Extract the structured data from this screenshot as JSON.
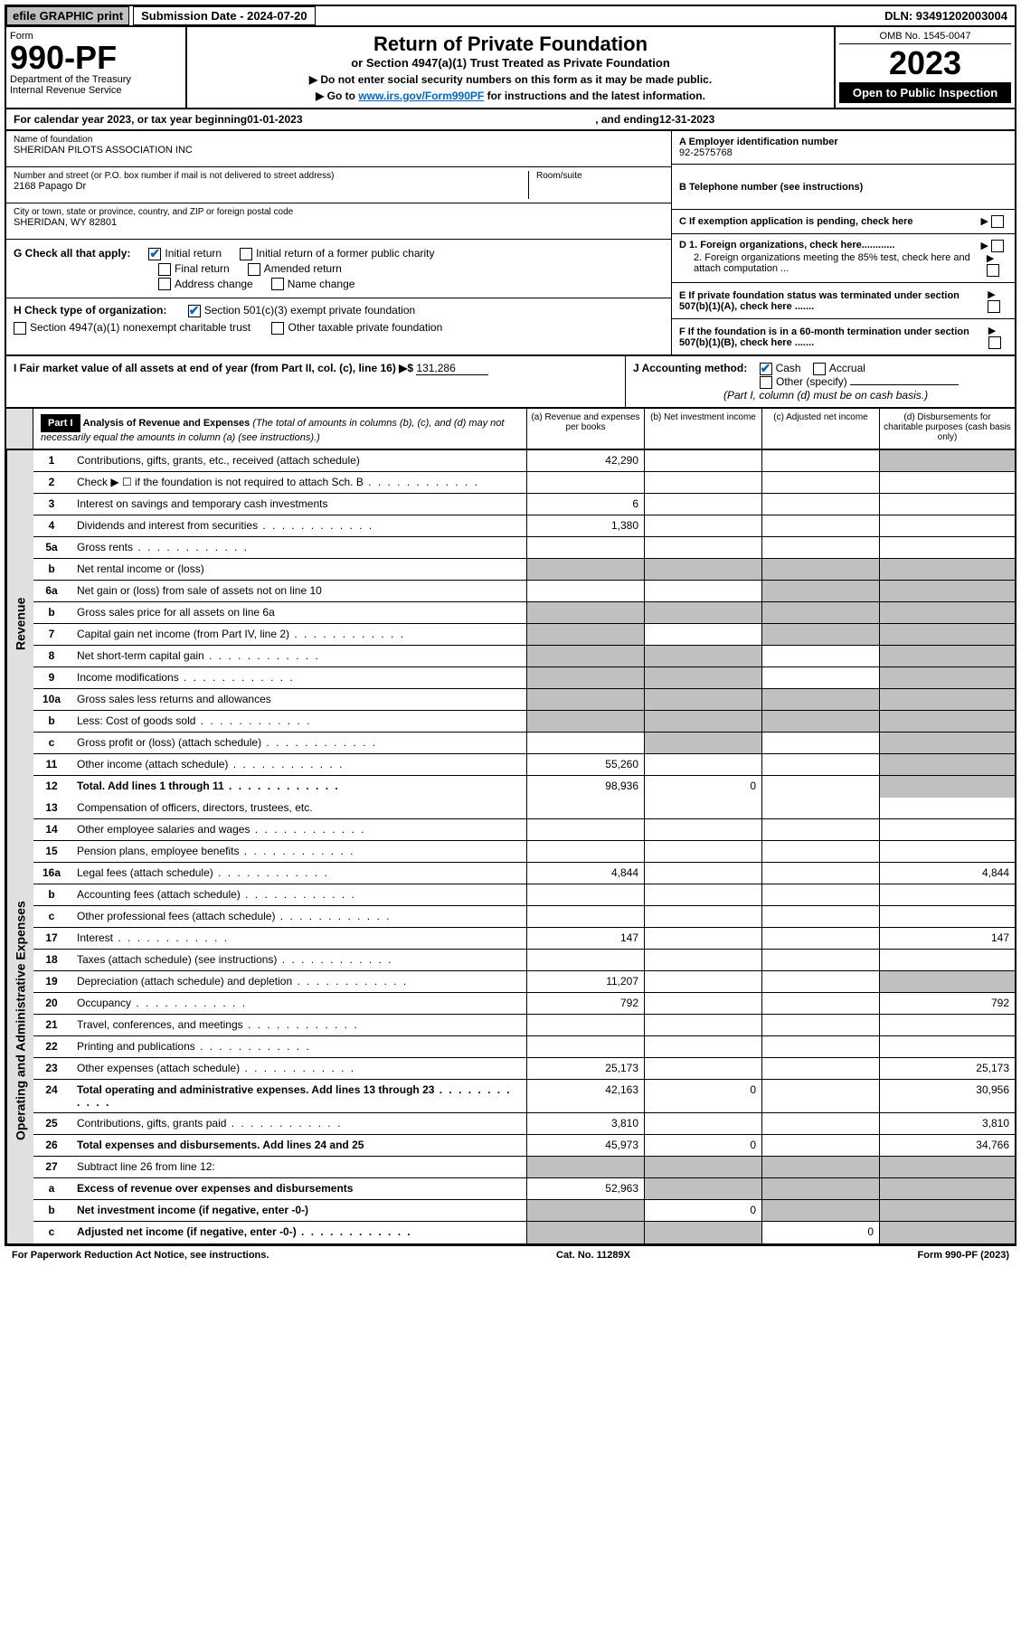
{
  "top": {
    "efile": "efile GRAPHIC print",
    "submission": "Submission Date - 2024-07-20",
    "dln": "DLN: 93491202003004"
  },
  "header": {
    "form": "Form",
    "number": "990-PF",
    "dept": "Department of the Treasury",
    "irs": "Internal Revenue Service",
    "title": "Return of Private Foundation",
    "subtitle": "or Section 4947(a)(1) Trust Treated as Private Foundation",
    "inst1": "▶ Do not enter social security numbers on this form as it may be made public.",
    "inst2": "▶ Go to ",
    "link": "www.irs.gov/Form990PF",
    "inst3": " for instructions and the latest information.",
    "omb": "OMB No. 1545-0047",
    "year": "2023",
    "open": "Open to Public Inspection"
  },
  "calyear": {
    "text1": "For calendar year 2023, or tax year beginning ",
    "begin": "01-01-2023",
    "text2": ", and ending ",
    "end": "12-31-2023"
  },
  "entity": {
    "name_label": "Name of foundation",
    "name": "SHERIDAN PILOTS ASSOCIATION INC",
    "addr_label": "Number and street (or P.O. box number if mail is not delivered to street address)",
    "addr": "2168 Papago Dr",
    "room_label": "Room/suite",
    "city_label": "City or town, state or province, country, and ZIP or foreign postal code",
    "city": "SHERIDAN, WY  82801",
    "ein_label": "A Employer identification number",
    "ein": "92-2575768",
    "phone_label": "B Telephone number (see instructions)",
    "c_label": "C If exemption application is pending, check here",
    "d1": "D 1. Foreign organizations, check here............",
    "d2": "2. Foreign organizations meeting the 85% test, check here and attach computation ...",
    "e_label": "E  If private foundation status was terminated under section 507(b)(1)(A), check here .......",
    "f_label": "F  If the foundation is in a 60-month termination under section 507(b)(1)(B), check here ......."
  },
  "g": {
    "label": "G Check all that apply:",
    "initial": "Initial return",
    "initial_former": "Initial return of a former public charity",
    "final": "Final return",
    "amended": "Amended return",
    "address": "Address change",
    "name_change": "Name change"
  },
  "h": {
    "label": "H Check type of organization:",
    "501c3": "Section 501(c)(3) exempt private foundation",
    "4947": "Section 4947(a)(1) nonexempt charitable trust",
    "other_taxable": "Other taxable private foundation"
  },
  "i": {
    "label": "I Fair market value of all assets at end of year (from Part II, col. (c), line 16)",
    "arrow": "▶$",
    "value": "131,286"
  },
  "j": {
    "label": "J Accounting method:",
    "cash": "Cash",
    "accrual": "Accrual",
    "other": "Other (specify)",
    "note": "(Part I, column (d) must be on cash basis.)"
  },
  "part1": {
    "label": "Part I",
    "title": "Analysis of Revenue and Expenses",
    "note": "(The total of amounts in columns (b), (c), and (d) may not necessarily equal the amounts in column (a) (see instructions).)",
    "col_a": "(a) Revenue and expenses per books",
    "col_b": "(b) Net investment income",
    "col_c": "(c) Adjusted net income",
    "col_d": "(d) Disbursements for charitable purposes (cash basis only)"
  },
  "side_labels": {
    "revenue": "Revenue",
    "expenses": "Operating and Administrative Expenses"
  },
  "lines": [
    {
      "no": "1",
      "desc": "Contributions, gifts, grants, etc., received (attach schedule)",
      "a": "42,290",
      "d_grey": true
    },
    {
      "no": "2",
      "desc": "Check ▶ ☐ if the foundation is not required to attach Sch. B",
      "dots": true,
      "all_grey": true
    },
    {
      "no": "3",
      "desc": "Interest on savings and temporary cash investments",
      "a": "6"
    },
    {
      "no": "4",
      "desc": "Dividends and interest from securities",
      "a": "1,380",
      "dots": true
    },
    {
      "no": "5a",
      "desc": "Gross rents",
      "dots": true
    },
    {
      "no": "b",
      "desc": "Net rental income or (loss)",
      "sub_input": true,
      "abcd_grey": true
    },
    {
      "no": "6a",
      "desc": "Net gain or (loss) from sale of assets not on line 10",
      "bcd_grey": false,
      "c_grey": true,
      "d_grey": true
    },
    {
      "no": "b",
      "desc": "Gross sales price for all assets on line 6a",
      "sub_input": true,
      "abcd_grey": true
    },
    {
      "no": "7",
      "desc": "Capital gain net income (from Part IV, line 2)",
      "a_grey": true,
      "c_grey": true,
      "d_grey": true,
      "dots": true
    },
    {
      "no": "8",
      "desc": "Net short-term capital gain",
      "a_grey": true,
      "b_grey": true,
      "d_grey": true,
      "dots": true
    },
    {
      "no": "9",
      "desc": "Income modifications",
      "a_grey": true,
      "b_grey": true,
      "d_grey": true,
      "dots": true
    },
    {
      "no": "10a",
      "desc": "Gross sales less returns and allowances",
      "sub_input": true,
      "abcd_grey": true
    },
    {
      "no": "b",
      "desc": "Less: Cost of goods sold",
      "sub_input": true,
      "abcd_grey": true,
      "dots": true
    },
    {
      "no": "c",
      "desc": "Gross profit or (loss) (attach schedule)",
      "b_grey": true,
      "d_grey": true,
      "dots": true
    },
    {
      "no": "11",
      "desc": "Other income (attach schedule)",
      "a": "55,260",
      "d_grey": true,
      "dots": true
    },
    {
      "no": "12",
      "desc": "Total. Add lines 1 through 11",
      "a": "98,936",
      "b": "0",
      "d_grey": true,
      "bold": true,
      "dots": true
    }
  ],
  "exp_lines": [
    {
      "no": "13",
      "desc": "Compensation of officers, directors, trustees, etc."
    },
    {
      "no": "14",
      "desc": "Other employee salaries and wages",
      "dots": true
    },
    {
      "no": "15",
      "desc": "Pension plans, employee benefits",
      "dots": true
    },
    {
      "no": "16a",
      "desc": "Legal fees (attach schedule)",
      "a": "4,844",
      "d": "4,844",
      "dots": true
    },
    {
      "no": "b",
      "desc": "Accounting fees (attach schedule)",
      "dots": true
    },
    {
      "no": "c",
      "desc": "Other professional fees (attach schedule)",
      "dots": true
    },
    {
      "no": "17",
      "desc": "Interest",
      "a": "147",
      "d": "147",
      "dots": true
    },
    {
      "no": "18",
      "desc": "Taxes (attach schedule) (see instructions)",
      "dots": true
    },
    {
      "no": "19",
      "desc": "Depreciation (attach schedule) and depletion",
      "a": "11,207",
      "d_grey": true,
      "dots": true
    },
    {
      "no": "20",
      "desc": "Occupancy",
      "a": "792",
      "d": "792",
      "dots": true
    },
    {
      "no": "21",
      "desc": "Travel, conferences, and meetings",
      "dots": true
    },
    {
      "no": "22",
      "desc": "Printing and publications",
      "dots": true
    },
    {
      "no": "23",
      "desc": "Other expenses (attach schedule)",
      "a": "25,173",
      "d": "25,173",
      "dots": true
    },
    {
      "no": "24",
      "desc": "Total operating and administrative expenses. Add lines 13 through 23",
      "a": "42,163",
      "b": "0",
      "d": "30,956",
      "bold": true,
      "dots": true
    },
    {
      "no": "25",
      "desc": "Contributions, gifts, grants paid",
      "a": "3,810",
      "d": "3,810",
      "dots": true
    },
    {
      "no": "26",
      "desc": "Total expenses and disbursements. Add lines 24 and 25",
      "a": "45,973",
      "b": "0",
      "d": "34,766",
      "bold": true
    },
    {
      "no": "27",
      "desc": "Subtract line 26 from line 12:",
      "abcd_grey": true
    },
    {
      "no": "a",
      "desc": "Excess of revenue over expenses and disbursements",
      "a": "52,963",
      "b_grey": true,
      "c_grey": true,
      "d_grey": true,
      "bold": true
    },
    {
      "no": "b",
      "desc": "Net investment income (if negative, enter -0-)",
      "a_grey": true,
      "b": "0",
      "c_grey": true,
      "d_grey": true,
      "bold": true
    },
    {
      "no": "c",
      "desc": "Adjusted net income (if negative, enter -0-)",
      "a_grey": true,
      "b_grey": true,
      "c": "0",
      "d_grey": true,
      "bold": true,
      "dots": true
    }
  ],
  "footer": {
    "left": "For Paperwork Reduction Act Notice, see instructions.",
    "center": "Cat. No. 11289X",
    "right": "Form 990-PF (2023)"
  }
}
